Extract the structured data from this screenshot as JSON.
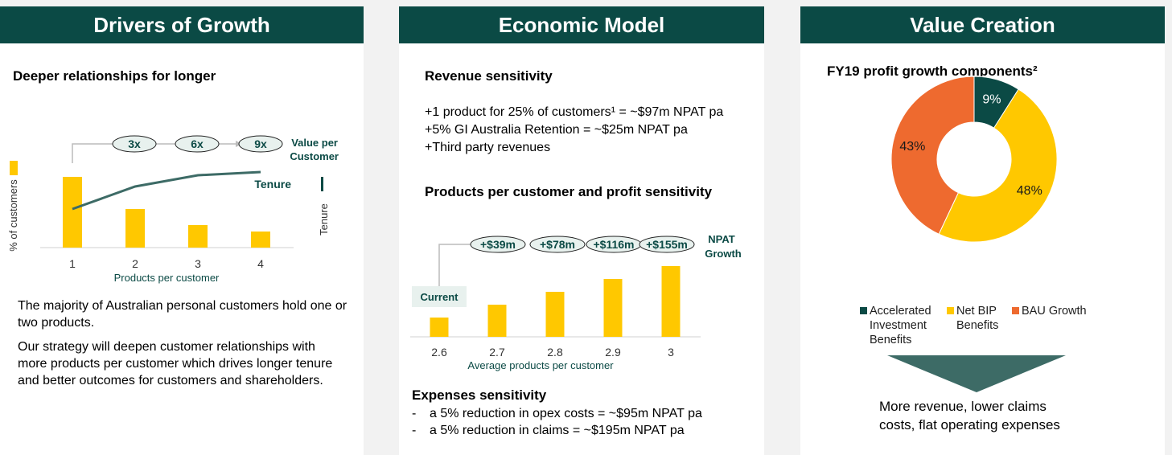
{
  "panels": {
    "drivers": {
      "header": "Drivers of Growth",
      "subtitle": "Deeper relationships for longer",
      "paragraph1": "The majority of Australian personal customers hold one or two products.",
      "paragraph2": "Our strategy will deepen customer relationships with more products per customer which drives longer tenure and better outcomes for customers and shareholders."
    },
    "economic": {
      "header": "Economic Model",
      "revenue_title": "Revenue sensitivity",
      "revenue_lines": [
        "+1 product for 25% of customers¹ = ~$97m NPAT pa",
        "+5% GI Australia Retention = ~$25m NPAT pa",
        "+Third party revenues"
      ],
      "products_title": "Products per customer and profit sensitivity",
      "expenses_title": "Expenses sensitivity",
      "expenses_lines": [
        "a 5% reduction in opex costs = ~$95m NPAT pa",
        "a 5% reduction in claims = ~$195m NPAT pa"
      ],
      "bullet": "-"
    },
    "value": {
      "header": "Value Creation",
      "subtitle": "FY19 profit growth components²",
      "conclusion_line1": "More revenue, lower claims",
      "conclusion_line2": "costs, flat operating expenses"
    }
  },
  "colors": {
    "header_bg": "#0b4a45",
    "bar_yellow": "#ffc800",
    "teal": "#3d6b66",
    "dark_teal": "#0b4a45",
    "orange": "#ee6a2f",
    "current_box": "#e8f1ee"
  },
  "chart_data": [
    {
      "type": "bar",
      "categories": [
        "1",
        "2",
        "3",
        "4"
      ],
      "values": [
        44,
        24,
        14,
        10
      ],
      "ylim": [
        0,
        50
      ],
      "xlabel": "Products per customer",
      "ylabel": "% of customers",
      "legend": "left",
      "series": [
        {
          "name": "Tenure",
          "type": "line",
          "values": [
            24,
            38,
            45,
            47
          ]
        }
      ],
      "multipliers": [
        "3x",
        "6x",
        "9x"
      ],
      "multiplier_label": [
        "Value per",
        "Customer"
      ],
      "tenure_axis_label": "Tenure"
    },
    {
      "type": "bar",
      "categories": [
        "2.6",
        "2.7",
        "2.8",
        "2.9",
        "3"
      ],
      "values": [
        2.6,
        2.7,
        2.8,
        2.9,
        3.0
      ],
      "ylim": [
        2.45,
        3.05
      ],
      "xlabel": "Average products per customer",
      "annotations": [
        "+$39m",
        "+$78m",
        "+$116m",
        "+$155m"
      ],
      "annotation_label": [
        "NPAT",
        "Growth"
      ],
      "current_label": "Current"
    },
    {
      "type": "pie",
      "labels": [
        "Accelerated Investment Benefits",
        "Net BIP Benefits",
        "BAU Growth"
      ],
      "label_lines": [
        [
          "Accelerated",
          "Investment",
          "Benefits"
        ],
        [
          "Net BIP",
          "Benefits"
        ],
        [
          "BAU Growth"
        ]
      ],
      "values": [
        9,
        48,
        43
      ],
      "display_values": [
        "9%",
        "48%",
        "43%"
      ],
      "colors": [
        "#0b4a45",
        "#ffc800",
        "#ee6a2f"
      ],
      "donut": true
    }
  ]
}
